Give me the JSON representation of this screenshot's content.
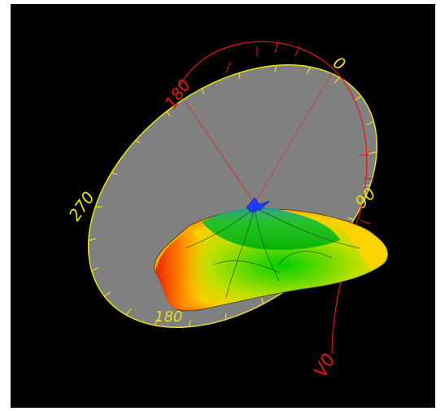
{
  "scene": {
    "background": "#000000",
    "horizontal_ring": {
      "color": "#e6e01e",
      "fill": "#808080",
      "labels": [
        "0",
        "90",
        "180",
        "270"
      ]
    },
    "vertical_arc": {
      "color": "#e81414",
      "labels": [
        "180",
        "0",
        "V0"
      ]
    },
    "pattern_colormap": [
      "#1e3cff",
      "#00c800",
      "#d2e600",
      "#ffd200",
      "#f01e00"
    ]
  }
}
